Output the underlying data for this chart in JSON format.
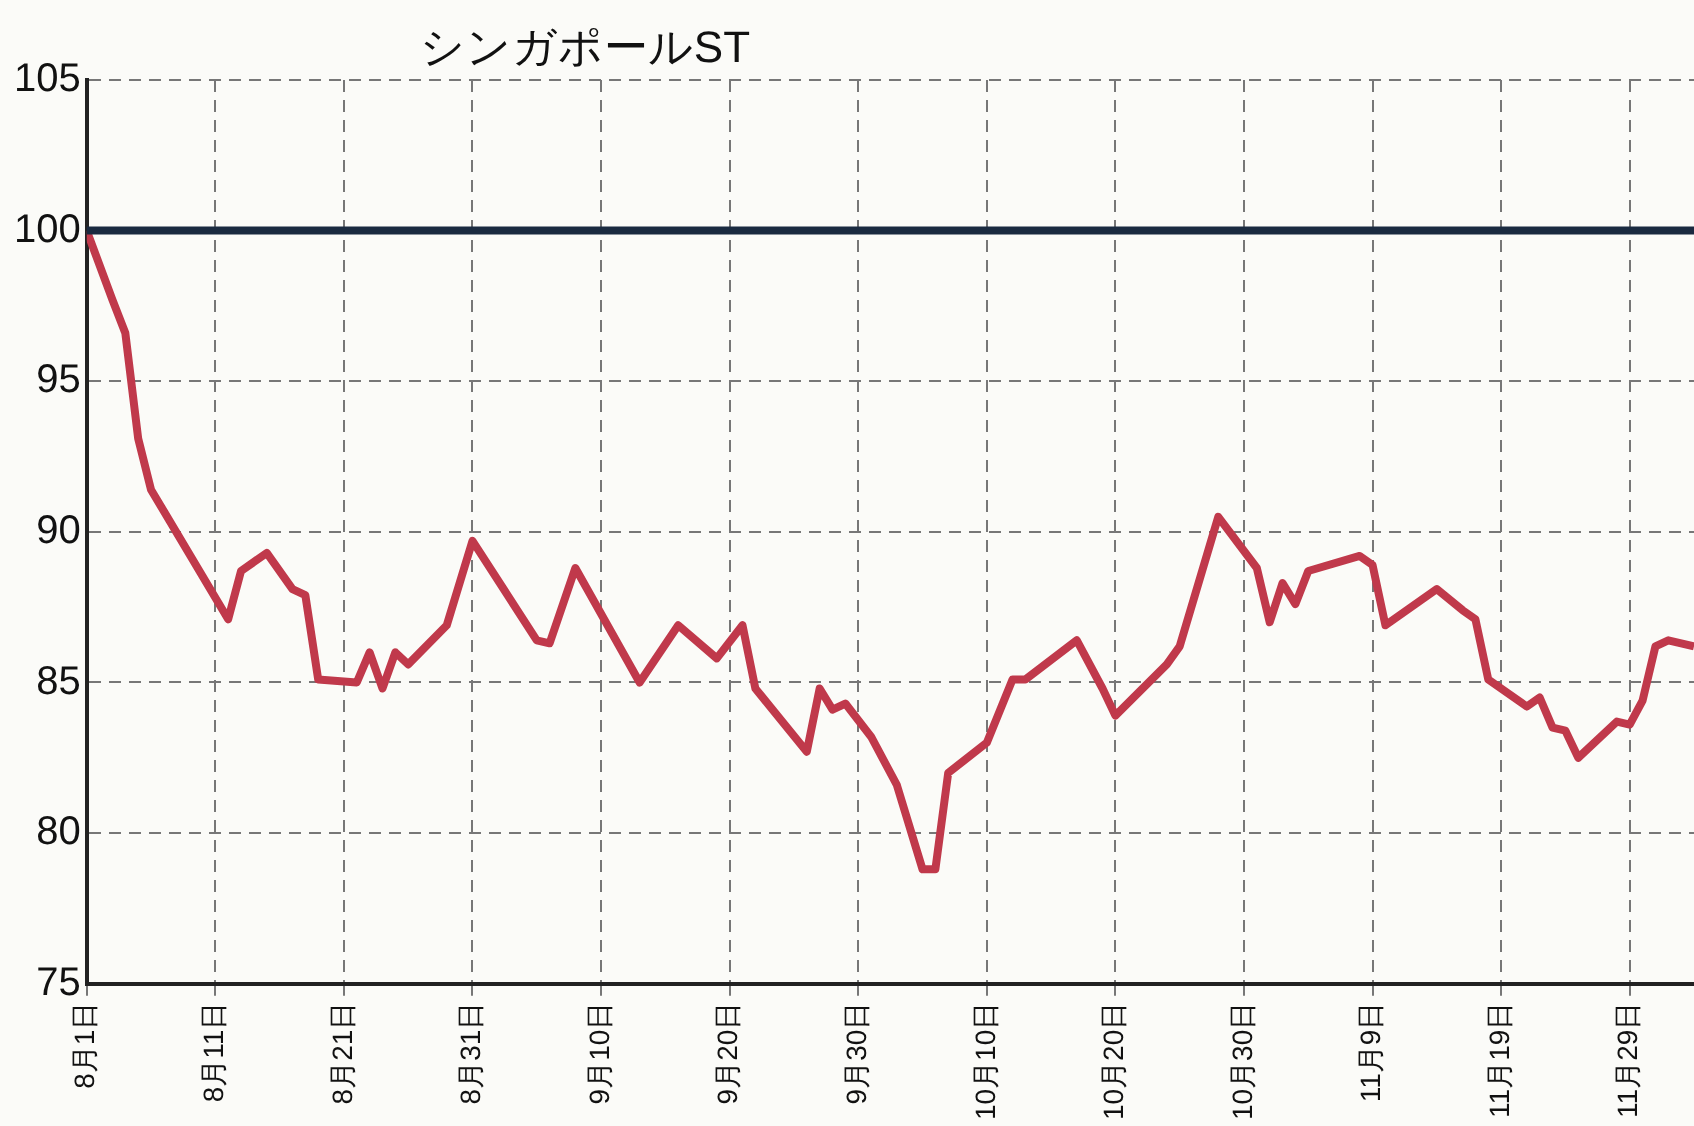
{
  "chart_data": {
    "type": "line",
    "title": "シンガポールST",
    "x": [
      "--08-01",
      "--08-03",
      "--08-04",
      "--08-05",
      "--08-06",
      "--08-12",
      "--08-13",
      "--08-15",
      "--08-17",
      "--08-18",
      "--08-19",
      "--08-22",
      "--08-23",
      "--08-24",
      "--08-25",
      "--08-26",
      "--08-29",
      "--08-31",
      "--09-05",
      "--09-06",
      "--09-08",
      "--09-13",
      "--09-16",
      "--09-19",
      "--09-21",
      "--09-22",
      "--09-26",
      "--09-27",
      "--09-28",
      "--09-29",
      "--10-01",
      "--10-03",
      "--10-05",
      "--10-06",
      "--10-07",
      "--10-10",
      "--10-12",
      "--10-13",
      "--10-17",
      "--10-19",
      "--10-20",
      "--10-24",
      "--10-25",
      "--10-28",
      "--10-31",
      "--11-01",
      "--11-02",
      "--11-03",
      "--11-04",
      "--11-08",
      "--11-09",
      "--11-10",
      "--11-14",
      "--11-16",
      "--11-17",
      "--11-18",
      "--11-21",
      "--11-22",
      "--11-23",
      "--11-24",
      "--11-25",
      "--11-28",
      "--11-29",
      "--11-30",
      "--12-01",
      "--12-02",
      "--12-04"
    ],
    "series": [
      {
        "color": "#c0394b",
        "values": [
          100,
          97.7,
          96.6,
          93.1,
          91.4,
          87.1,
          88.7,
          89.3,
          88.1,
          87.9,
          85.1,
          85,
          86,
          84.8,
          86,
          85.6,
          86.9,
          89.7,
          86.4,
          86.3,
          88.8,
          85,
          86.9,
          85.8,
          86.9,
          84.8,
          82.7,
          84.8,
          84.1,
          84.3,
          83.2,
          81.6,
          78.8,
          78.8,
          82,
          83,
          85.1,
          85.1,
          86.4,
          84.8,
          83.9,
          85.6,
          86.2,
          90.5,
          88.8,
          87,
          88.3,
          87.6,
          88.7,
          89.2,
          88.9,
          86.9,
          88.1,
          87.4,
          87.1,
          85.1,
          84.2,
          84.5,
          83.5,
          83.4,
          82.5,
          83.7,
          83.6,
          84.4,
          86.2,
          86.4,
          86.2
        ]
      }
    ],
    "xlim": [
      "--08-01",
      "--12-04"
    ],
    "xticks": [
      {
        "value": "--08-01",
        "label": "8月1日"
      },
      {
        "value": "--08-11",
        "label": "8月11日"
      },
      {
        "value": "--08-21",
        "label": "8月21日"
      },
      {
        "value": "--08-31",
        "label": "8月31日"
      },
      {
        "value": "--09-10",
        "label": "9月10日"
      },
      {
        "value": "--09-20",
        "label": "9月20日"
      },
      {
        "value": "--09-30",
        "label": "9月30日"
      },
      {
        "value": "--10-10",
        "label": "10月10日"
      },
      {
        "value": "--10-20",
        "label": "10月20日"
      },
      {
        "value": "--10-30",
        "label": "10月30日"
      },
      {
        "value": "--11-09",
        "label": "11月9日"
      },
      {
        "value": "--11-19",
        "label": "11月19日"
      },
      {
        "value": "--11-29",
        "label": "11月29日"
      }
    ],
    "ylim": [
      75,
      105
    ],
    "yticks": [
      75,
      80,
      85,
      90,
      95,
      100,
      105
    ],
    "ref_lines": [
      {
        "axis": "y",
        "value": 100,
        "color": "#1a2a40"
      }
    ],
    "grid": true,
    "legend": false
  }
}
